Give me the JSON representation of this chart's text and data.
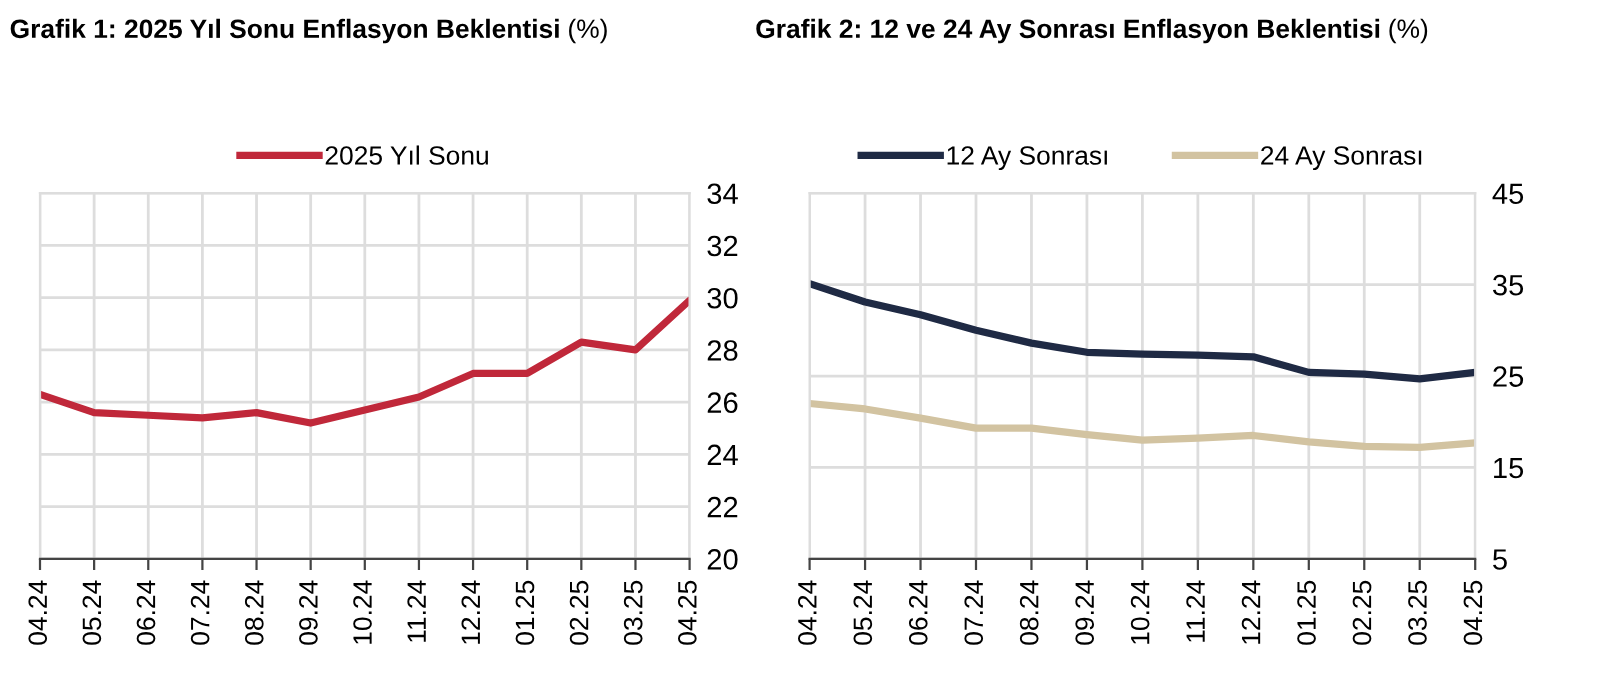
{
  "chart_data": [
    {
      "type": "line",
      "title": "Grafik 1: 2025 Yıl Sonu Enflasyon Beklentisi",
      "subtitle": "(%)",
      "categories": [
        "04.24",
        "05.24",
        "06.24",
        "07.24",
        "08.24",
        "09.24",
        "10.24",
        "11.24",
        "12.24",
        "01.25",
        "02.25",
        "03.25",
        "04.25"
      ],
      "series": [
        {
          "name": "2025 Yıl Sonu",
          "color": "#c0283a",
          "values": [
            26.3,
            25.6,
            25.5,
            25.4,
            25.6,
            25.2,
            25.7,
            26.2,
            27.1,
            27.1,
            28.3,
            28.0,
            29.9
          ]
        }
      ],
      "ylim": [
        20,
        34
      ],
      "yticks": [
        20,
        22,
        24,
        26,
        28,
        30,
        32,
        34
      ],
      "grid": true,
      "legend": "top"
    },
    {
      "type": "line",
      "title": "Grafik 2: 12 ve 24 Ay Sonrası Enflasyon Beklentisi",
      "subtitle": "(%)",
      "categories": [
        "04.24",
        "05.24",
        "06.24",
        "07.24",
        "08.24",
        "09.24",
        "10.24",
        "11.24",
        "12.24",
        "01.25",
        "02.25",
        "03.25",
        "04.25"
      ],
      "series": [
        {
          "name": "12 Ay Sonrası",
          "color": "#1f2a44",
          "values": [
            35.1,
            33.1,
            31.7,
            30.0,
            28.6,
            27.6,
            27.4,
            27.3,
            27.1,
            25.4,
            25.2,
            24.7,
            25.4
          ]
        },
        {
          "name": "24 Ay Sonrası",
          "color": "#d2c3a1",
          "values": [
            22.0,
            21.4,
            20.4,
            19.3,
            19.3,
            18.6,
            18.0,
            18.2,
            18.5,
            17.8,
            17.3,
            17.2,
            17.7
          ]
        }
      ],
      "ylim": [
        5,
        45
      ],
      "yticks": [
        5,
        15,
        25,
        35,
        45
      ],
      "grid": true,
      "legend": "top"
    }
  ]
}
